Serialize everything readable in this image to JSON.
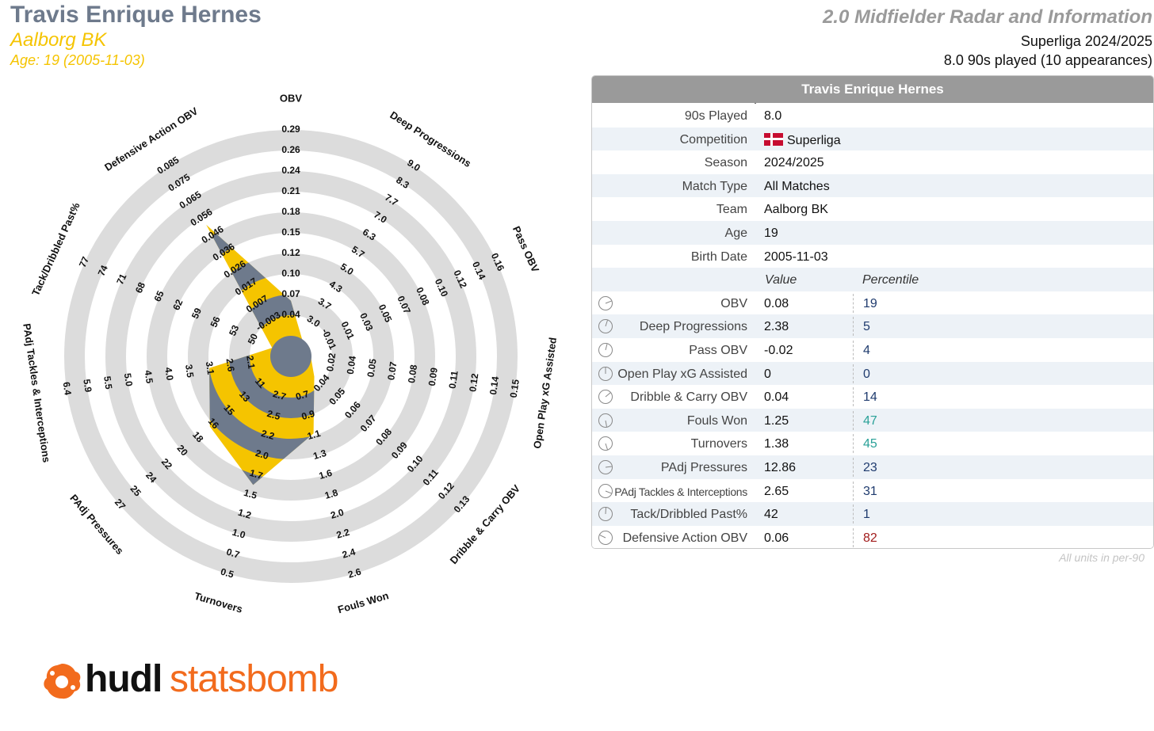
{
  "header": {
    "player_name": "Travis Enrique Hernes",
    "team": "Aalborg BK",
    "age_line": "Age: 19 (2005-11-03)",
    "chart_title": "2.0 Midfielder Radar and Information",
    "league_season": "Superliga 2024/2025",
    "played_line": "8.0 90s played (10 appearances)"
  },
  "colors": {
    "accent_yellow": "#f5c400",
    "slate": "#6e7a8c",
    "ring_grey": "#dcdcdc",
    "pct_low": "#1f3b6e",
    "pct_mid": "#2aa198",
    "pct_high": "#a11b1b"
  },
  "chart_data": {
    "type": "radar",
    "axes": [
      {
        "label": "OBV",
        "ticks": [
          "0.04",
          "0.07",
          "0.10",
          "0.12",
          "0.15",
          "0.18",
          "0.21",
          "0.24",
          "0.26",
          "0.29"
        ],
        "value": 0.08,
        "percentile": 19
      },
      {
        "label": "Deep Progressions",
        "ticks": [
          "3.0",
          "3.7",
          "4.3",
          "5.0",
          "5.7",
          "6.3",
          "7.0",
          "7.7",
          "8.3",
          "9.0"
        ],
        "value": 2.38,
        "percentile": 5
      },
      {
        "label": "Pass OBV",
        "ticks": [
          "-0.01",
          "0.01",
          "0.03",
          "0.05",
          "0.07",
          "0.08",
          "0.10",
          "0.12",
          "0.14",
          "0.16"
        ],
        "value": -0.02,
        "percentile": 4
      },
      {
        "label": "Open Play xG Assisted",
        "ticks": [
          "0.02",
          "0.04",
          "0.05",
          "0.07",
          "0.08",
          "0.09",
          "0.11",
          "0.12",
          "0.14",
          "0.15"
        ],
        "value": 0,
        "percentile": 0
      },
      {
        "label": "Dribble & Carry OBV",
        "ticks": [
          "0.04",
          "0.05",
          "0.06",
          "0.07",
          "0.08",
          "0.09",
          "0.10",
          "0.11",
          "0.12",
          "0.13"
        ],
        "value": 0.04,
        "percentile": 14
      },
      {
        "label": "Fouls Won",
        "ticks": [
          "0.7",
          "0.9",
          "1.1",
          "1.3",
          "1.6",
          "1.8",
          "2.0",
          "2.2",
          "2.4",
          "2.6"
        ],
        "value": 1.25,
        "percentile": 47
      },
      {
        "label": "Turnovers",
        "ticks": [
          "2.7",
          "2.5",
          "2.2",
          "2.0",
          "1.7",
          "1.5",
          "1.2",
          "1.0",
          "0.7",
          "0.5"
        ],
        "value": 1.38,
        "percentile": 45
      },
      {
        "label": "PAdj Pressures",
        "ticks": [
          "11",
          "13",
          "15",
          "16",
          "18",
          "20",
          "22",
          "24",
          "25",
          "27"
        ],
        "value": 12.86,
        "percentile": 23
      },
      {
        "label": "PAdj Tackles & Interceptions",
        "ticks": [
          "2.1",
          "2.6",
          "3.1",
          "3.5",
          "4.0",
          "4.5",
          "5.0",
          "5.5",
          "5.9",
          "6.4"
        ],
        "value": 2.65,
        "percentile": 31
      },
      {
        "label": "Tack/Dribbled Past%",
        "ticks": [
          "50",
          "53",
          "56",
          "59",
          "62",
          "65",
          "68",
          "71",
          "74",
          "77"
        ],
        "value": 42,
        "percentile": 1
      },
      {
        "label": "Defensive Action OBV",
        "ticks": [
          "-0.003",
          "0.007",
          "0.017",
          "0.026",
          "0.036",
          "0.046",
          "0.056",
          "0.065",
          "0.075",
          "0.085"
        ],
        "value": 0.06,
        "percentile": 82
      }
    ],
    "polygon_ring_positions": [
      1.7,
      0.0,
      0.0,
      0.0,
      0.5,
      2.9,
      5.5,
      4.2,
      3.0,
      0.0,
      6.6
    ]
  },
  "panel": {
    "title": "Travis Enrique Hernes",
    "info": [
      {
        "label": "90s Played",
        "value": "8.0"
      },
      {
        "label": "Competition",
        "value": "Superliga",
        "flag": true
      },
      {
        "label": "Season",
        "value": "2024/2025"
      },
      {
        "label": "Match Type",
        "value": "All Matches"
      },
      {
        "label": "Team",
        "value": "Aalborg BK"
      },
      {
        "label": "Age",
        "value": "19"
      },
      {
        "label": "Birth Date",
        "value": "2005-11-03"
      }
    ],
    "value_header": "Value",
    "percentile_header": "Percentile",
    "metrics": [
      {
        "label": "OBV",
        "value": "0.08",
        "percentile": "19",
        "pct_color": "#1f3b6e"
      },
      {
        "label": "Deep Progressions",
        "value": "2.38",
        "percentile": "5",
        "pct_color": "#1f3b6e"
      },
      {
        "label": "Pass OBV",
        "value": "-0.02",
        "percentile": "4",
        "pct_color": "#1f3b6e"
      },
      {
        "label": "Open Play xG Assisted",
        "value": "0",
        "percentile": "0",
        "pct_color": "#1f3b6e"
      },
      {
        "label": "Dribble & Carry OBV",
        "value": "0.04",
        "percentile": "14",
        "pct_color": "#1f3b6e"
      },
      {
        "label": "Fouls Won",
        "value": "1.25",
        "percentile": "47",
        "pct_color": "#2aa198"
      },
      {
        "label": "Turnovers",
        "value": "1.38",
        "percentile": "45",
        "pct_color": "#2aa198"
      },
      {
        "label": "PAdj Pressures",
        "value": "12.86",
        "percentile": "23",
        "pct_color": "#1f3b6e"
      },
      {
        "label": "PAdj Tackles & Interceptions",
        "value": "2.65",
        "percentile": "31",
        "pct_color": "#1f3b6e"
      },
      {
        "label": "Tack/Dribbled Past%",
        "value": "42",
        "percentile": "1",
        "pct_color": "#1f3b6e"
      },
      {
        "label": "Defensive Action OBV",
        "value": "0.06",
        "percentile": "82",
        "pct_color": "#a11b1b"
      }
    ],
    "footnote": "All units in per-90"
  },
  "logo": {
    "part1": "hudl",
    "part2": "statsbomb"
  }
}
